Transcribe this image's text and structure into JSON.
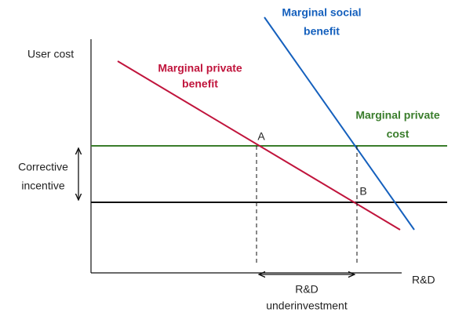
{
  "axes": {
    "y_label": "User cost",
    "x_label": "R&D"
  },
  "curves": [
    {
      "label": [
        "Marginal social",
        "benefit"
      ]
    },
    {
      "label": [
        "Marginal private",
        "benefit"
      ]
    },
    {
      "label": [
        "Marginal private",
        "cost"
      ]
    }
  ],
  "points": [
    "A",
    "B"
  ],
  "annotations": {
    "corrective": [
      "Corrective",
      "incentive"
    ],
    "gap": [
      "R&D",
      "underinvestment"
    ]
  }
}
